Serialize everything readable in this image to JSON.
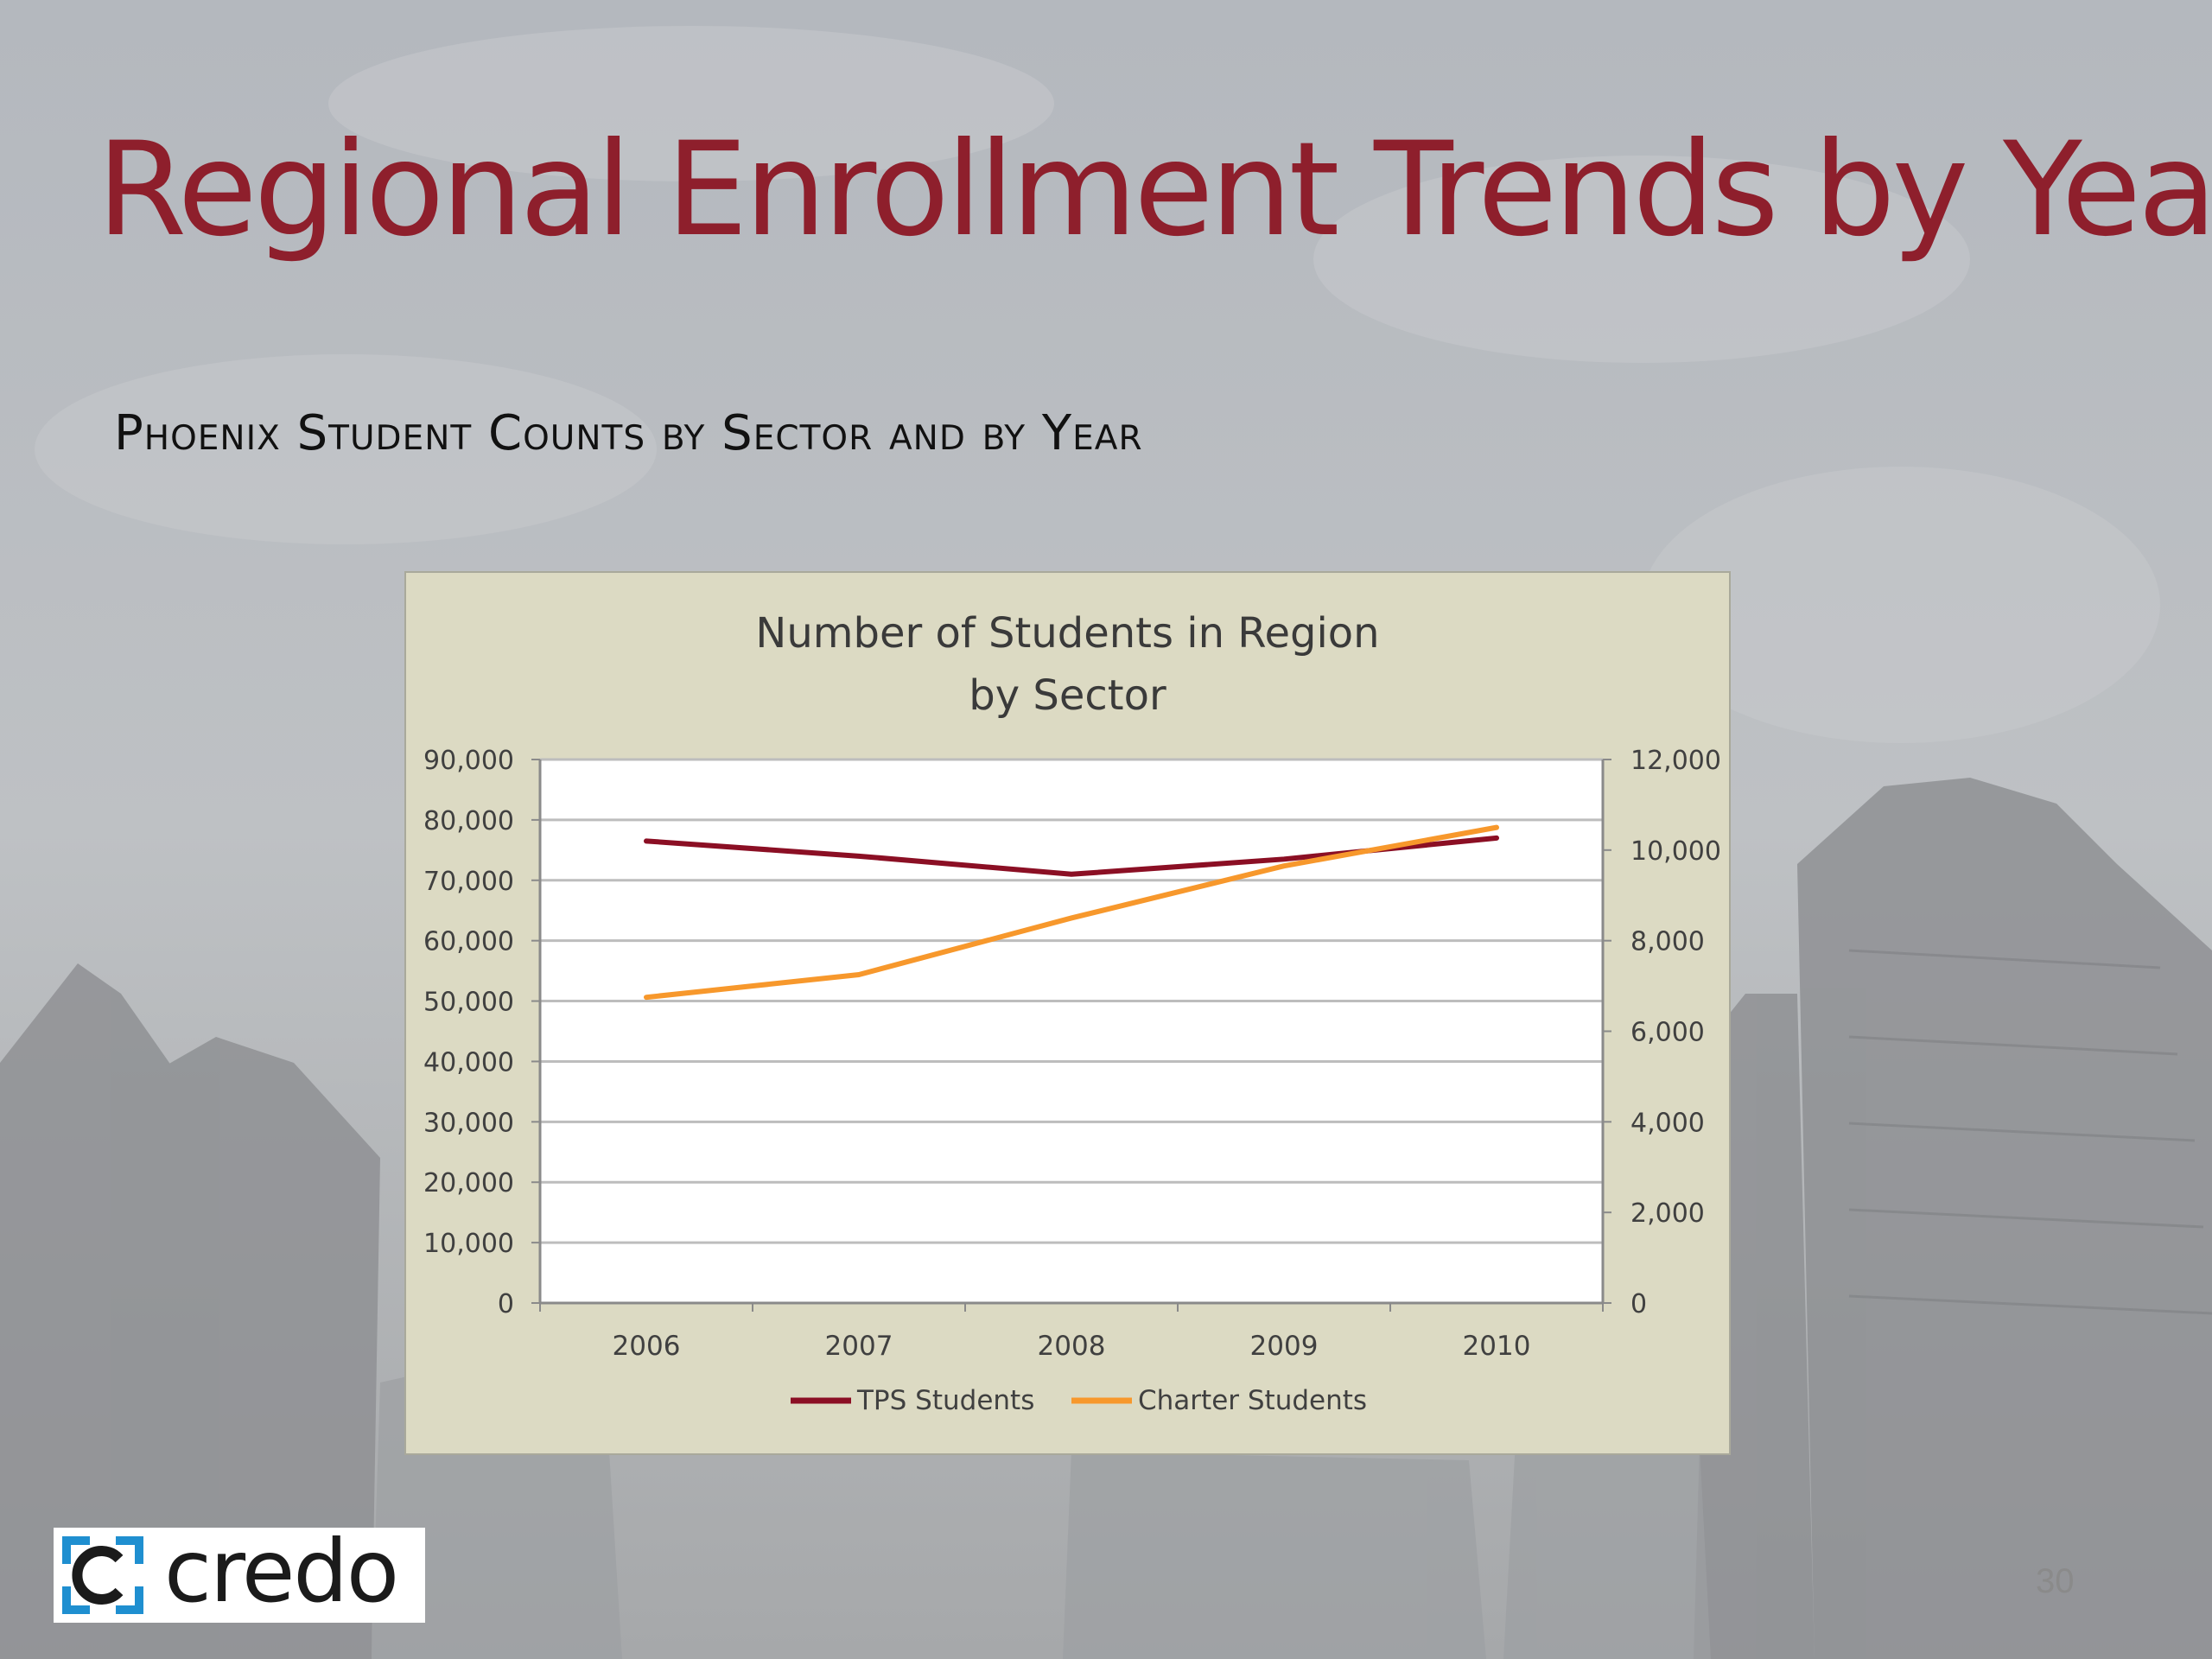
{
  "slide": {
    "title": "Regional Enrollment Trends by Year",
    "subtitle": "Phoenix Student Counts by Sector and by Year",
    "page_number": "30",
    "logo_text": "credo"
  },
  "colors": {
    "title": "#8e1f2c",
    "tps": "#8b0f24",
    "charter": "#f7982c",
    "chart_frame": "#dcdac3"
  },
  "chart_data": {
    "type": "line",
    "title_lines": [
      "Number of Students in Region",
      "by Sector"
    ],
    "categories": [
      "2006",
      "2007",
      "2008",
      "2009",
      "2010"
    ],
    "y_left": {
      "min": 0,
      "max": 90000,
      "step": 10000,
      "ticks": [
        "0",
        "10,000",
        "20,000",
        "30,000",
        "40,000",
        "50,000",
        "60,000",
        "70,000",
        "80,000",
        "90,000"
      ]
    },
    "y_right": {
      "min": 0,
      "max": 12000,
      "step": 2000,
      "ticks": [
        "0",
        "2,000",
        "4,000",
        "6,000",
        "8,000",
        "10,000",
        "12,000"
      ]
    },
    "series": [
      {
        "name": "TPS Students",
        "axis": "left",
        "color": "#8b0f24",
        "values": [
          76500,
          74000,
          71000,
          73500,
          77000
        ]
      },
      {
        "name": "Charter Students",
        "axis": "right",
        "color": "#f7982c",
        "values": [
          6750,
          7250,
          8500,
          9650,
          10500
        ]
      }
    ],
    "grid": true,
    "legend_position": "bottom"
  }
}
